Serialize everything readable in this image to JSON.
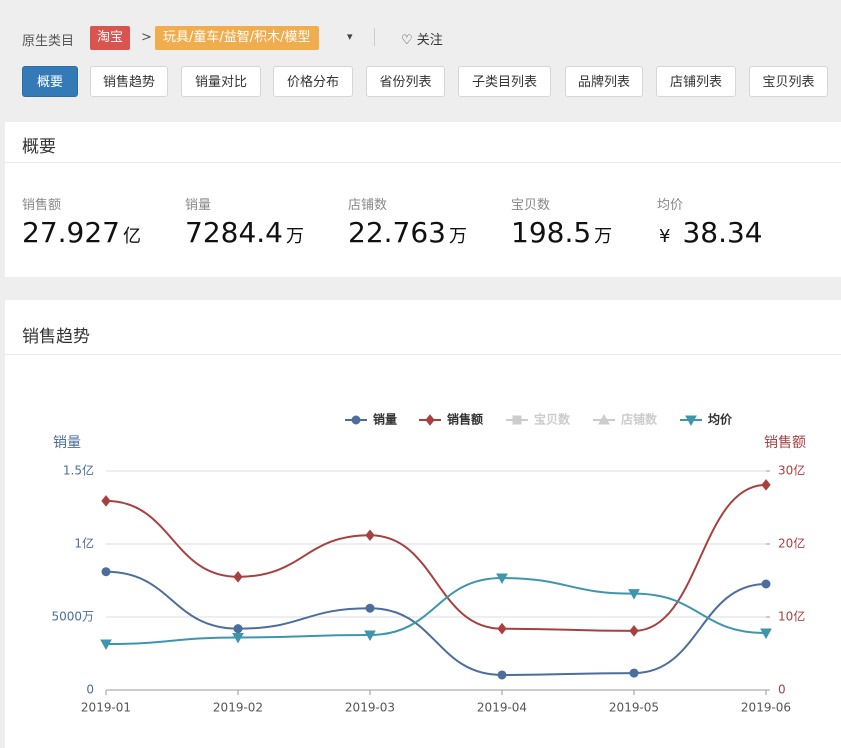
{
  "header": {
    "label": "原生类目",
    "platform": "淘宝",
    "separator": ">",
    "category": "玩具/童车/益智/积木/模型",
    "follow": "关注"
  },
  "tabs": [
    "概要",
    "销售趋势",
    "销量对比",
    "价格分布",
    "省份列表",
    "子类目列表",
    "品牌列表",
    "店铺列表",
    "宝贝列表"
  ],
  "active_tab": 0,
  "overview": {
    "title": "概要",
    "stats": [
      {
        "label": "销售额",
        "value": "27.927",
        "unit": "亿"
      },
      {
        "label": "销量",
        "value": "7284.4",
        "unit": "万"
      },
      {
        "label": "店铺数",
        "value": "22.763",
        "unit": "万"
      },
      {
        "label": "宝贝数",
        "value": "198.5",
        "unit": "万"
      },
      {
        "label": "均价",
        "prefix": "¥",
        "value": "38.34"
      }
    ]
  },
  "trend": {
    "title": "销售趋势",
    "chart_data": {
      "type": "line",
      "categories": [
        "2019-01",
        "2019-02",
        "2019-03",
        "2019-04",
        "2019-05",
        "2019-06"
      ],
      "ylabel": "销量",
      "y2label": "销售额",
      "ylim": [
        0,
        150000000
      ],
      "yticks": [
        0,
        {
          "value": 50000000,
          "label": "5000万"
        },
        {
          "value": 100000000,
          "label": "1亿"
        },
        {
          "value": 150000000,
          "label": "1.5亿"
        }
      ],
      "y2lim": [
        0,
        3000000000
      ],
      "y2ticks": [
        0,
        {
          "value": 1000000000,
          "label": "10亿"
        },
        {
          "value": 2000000000,
          "label": "20亿"
        },
        {
          "value": 3000000000,
          "label": "30亿"
        }
      ],
      "y3lim": [
        0,
        150
      ],
      "grid": true,
      "smooth": true,
      "legend": "top-right",
      "series": [
        {
          "name": "销量",
          "color": "#4b6e9c",
          "symbol": "circle",
          "axis": "y",
          "values": [
            81000000,
            42000000,
            56000000,
            10300000,
            11600000,
            72600000
          ]
        },
        {
          "name": "销售额",
          "color": "#a8403f",
          "symbol": "diamond",
          "axis": "y2",
          "values": [
            2590000000,
            1550000000,
            2120000000,
            840000000,
            810000000,
            2810000000
          ]
        },
        {
          "name": "宝贝数",
          "color": "#cccccc",
          "symbol": "rect",
          "visible": false
        },
        {
          "name": "店铺数",
          "color": "#cccccc",
          "symbol": "triangle",
          "visible": false
        },
        {
          "name": "均价",
          "color": "#3e96ad",
          "symbol": "triangle-down",
          "axis": "y3",
          "values": [
            31.5,
            36,
            37.7,
            76.7,
            66,
            39
          ]
        }
      ]
    }
  }
}
